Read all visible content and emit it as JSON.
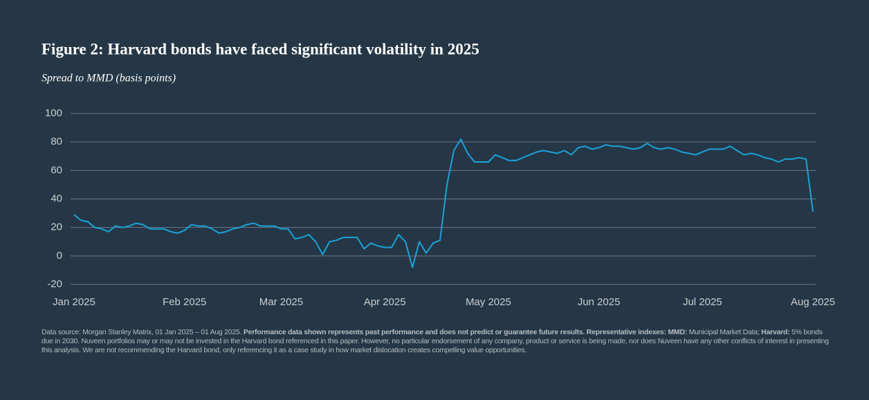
{
  "chart_data": {
    "type": "line",
    "title": "Figure 2: Harvard bonds have faced significant volatility in 2025",
    "subtitle": "Spread to MMD (basis points)",
    "categories": [
      "Jan 2025",
      null,
      null,
      null,
      null,
      null,
      null,
      null,
      null,
      null,
      null,
      null,
      null,
      null,
      null,
      null,
      "Feb 2025",
      null,
      null,
      null,
      null,
      null,
      null,
      null,
      null,
      null,
      null,
      null,
      null,
      null,
      "Mar 2025",
      null,
      null,
      null,
      null,
      null,
      null,
      null,
      null,
      null,
      null,
      null,
      null,
      null,
      null,
      "Apr 2025",
      null,
      null,
      null,
      null,
      null,
      null,
      null,
      null,
      null,
      null,
      null,
      null,
      null,
      null,
      "May 2025",
      null,
      null,
      null,
      null,
      null,
      null,
      null,
      null,
      null,
      null,
      null,
      null,
      null,
      null,
      null,
      "Jun 2025",
      null,
      null,
      null,
      null,
      null,
      null,
      null,
      null,
      null,
      null,
      null,
      null,
      null,
      null,
      "Jul 2025",
      null,
      null,
      null,
      null,
      null,
      null,
      null,
      null,
      null,
      null,
      null,
      null,
      null,
      null,
      null,
      "Aug 2025"
    ],
    "series": [
      {
        "name": "Harvard",
        "color": "#1aa3d9",
        "values": [
          29,
          25,
          24,
          20,
          19,
          17,
          21,
          20,
          21,
          23,
          22,
          19,
          19,
          19,
          17,
          16,
          18,
          22,
          21,
          21,
          19,
          16,
          17,
          19,
          20,
          22,
          23,
          21,
          21,
          21,
          19,
          19,
          12,
          13,
          15,
          10,
          1,
          10,
          11,
          13,
          13,
          13,
          5,
          9,
          7,
          6,
          6,
          15,
          10,
          -8,
          10,
          2,
          9,
          11,
          50,
          74,
          82,
          72,
          66,
          66,
          66,
          71,
          69,
          67,
          67,
          69,
          71,
          73,
          74,
          73,
          72,
          74,
          71,
          76,
          77,
          75,
          76,
          78,
          77,
          77,
          76,
          75,
          76,
          79,
          76,
          75,
          76,
          75,
          73,
          72,
          71,
          73,
          75,
          75,
          75,
          77,
          74,
          71,
          72,
          71,
          69,
          68,
          66,
          68,
          68,
          69,
          68,
          31
        ]
      }
    ],
    "ylim": [
      -20,
      100
    ],
    "yticks": [
      -20,
      0,
      20,
      40,
      60,
      80,
      100
    ],
    "grid": true,
    "footnote": [
      "Data source: Morgan Stanley Matrix, 01 Jan 2025 – 01 Aug 2025. ",
      "Performance data shown represents past performance and does not predict or guarantee future results. Representative indexes: MMD:",
      " Municipal Market Data; ",
      "Harvard:",
      " 5% bonds due in 2030. Nuveen portfolios may or may not be invested in the Harvard bond referenced in this paper. However, no particular endorsement of any company, product or service is being made, nor does Nuveen have any other conflicts of interest in presenting this analysis. We are not recommending the Harvard bond, only referencing it as a case study in how market dislocation creates compelling value opportunities."
    ]
  }
}
